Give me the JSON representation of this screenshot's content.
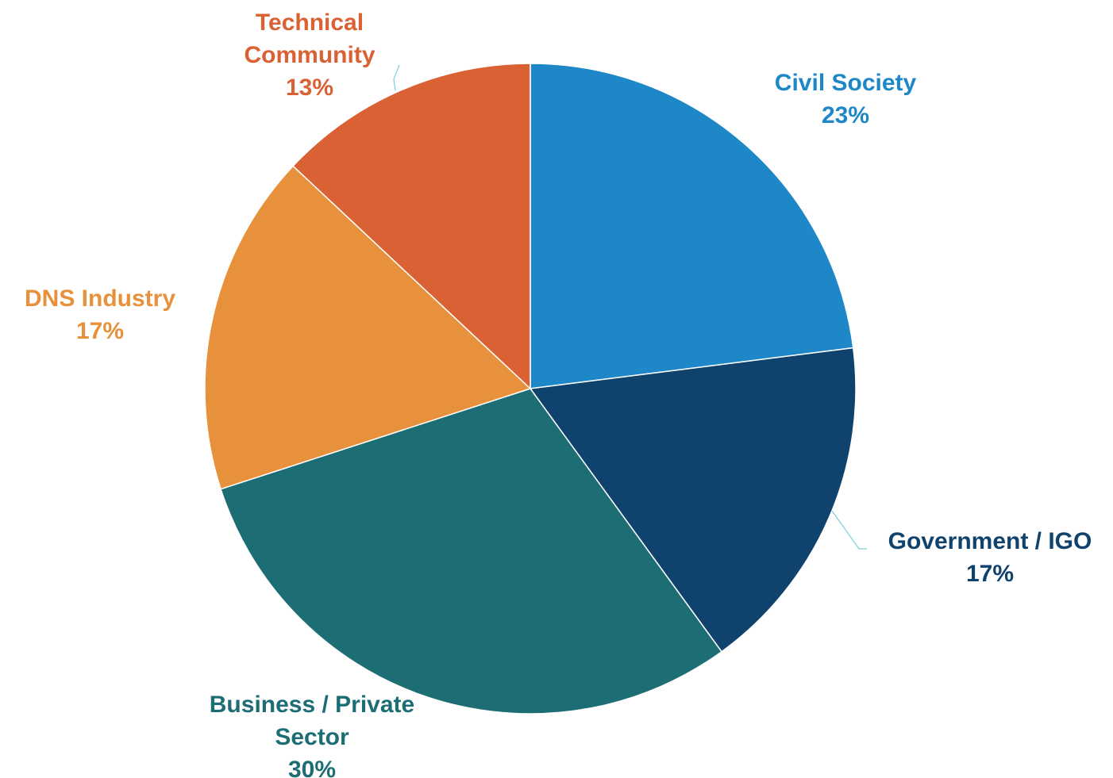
{
  "chart_data": {
    "type": "pie",
    "title": "",
    "start_angle_deg": 0,
    "direction": "clockwise",
    "slices": [
      {
        "label_lines": [
          "Civil Society"
        ],
        "value_label": "23%",
        "value": 23,
        "color": "#1e87c8"
      },
      {
        "label_lines": [
          "Government / IGO"
        ],
        "value_label": "17%",
        "value": 17,
        "color": "#0f426d"
      },
      {
        "label_lines": [
          "Business / Private",
          "Sector"
        ],
        "value_label": "30%",
        "value": 30,
        "color": "#1d6d74"
      },
      {
        "label_lines": [
          "DNS Industry"
        ],
        "value_label": "17%",
        "value": 17,
        "color": "#e8913c"
      },
      {
        "label_lines": [
          "Technical",
          "Community"
        ],
        "value_label": "13%",
        "value": 13,
        "color": "#da6134"
      }
    ],
    "leader_line_color": "#7ccfd8"
  }
}
